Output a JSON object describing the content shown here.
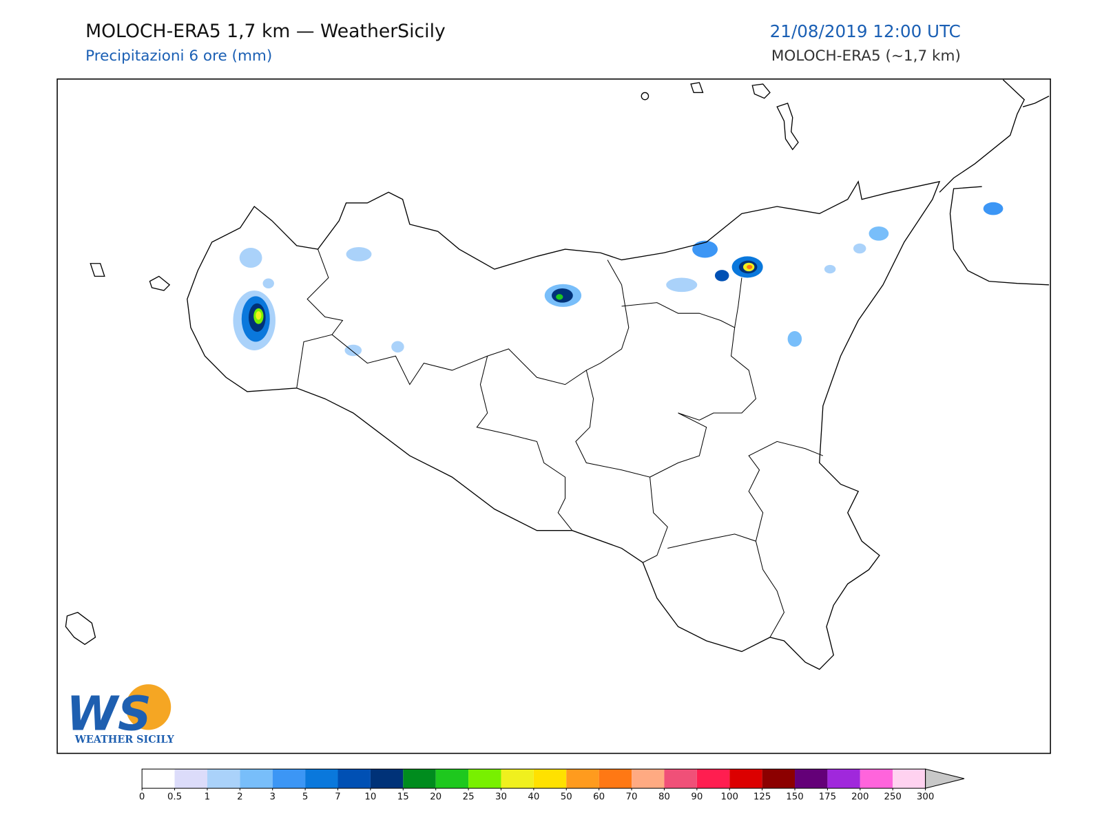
{
  "header": {
    "title": "MOLOCH-ERA5 1,7 km — WeatherSicily",
    "subtitle": "Precipitazioni 6 ore (mm)",
    "date": "21/08/2019 12:00 UTC",
    "model": "MOLOCH-ERA5 (~1,7 km)"
  },
  "logo": {
    "mark": "WS",
    "text": "WEATHER SICILY"
  },
  "colorbar": {
    "ticks": [
      0,
      0.5,
      1,
      2,
      3,
      5,
      7,
      10,
      15,
      20,
      25,
      30,
      40,
      50,
      60,
      70,
      80,
      90,
      100,
      125,
      150,
      175,
      200,
      250,
      300
    ],
    "colors": [
      "#ffffff",
      "#dcdcfa",
      "#aad2fa",
      "#78befa",
      "#3c96f5",
      "#0a78dc",
      "#0050b4",
      "#003278",
      "#008c1e",
      "#1ec81e",
      "#78f000",
      "#f0f01e",
      "#ffe100",
      "#ff9b1e",
      "#ff7814",
      "#ffaa82",
      "#f05078",
      "#ff1e50",
      "#dc0000",
      "#8c0000",
      "#640078",
      "#a028dc",
      "#ff64dc",
      "#ffd2f0"
    ],
    "extend_color": "#c8c8c8"
  }
}
